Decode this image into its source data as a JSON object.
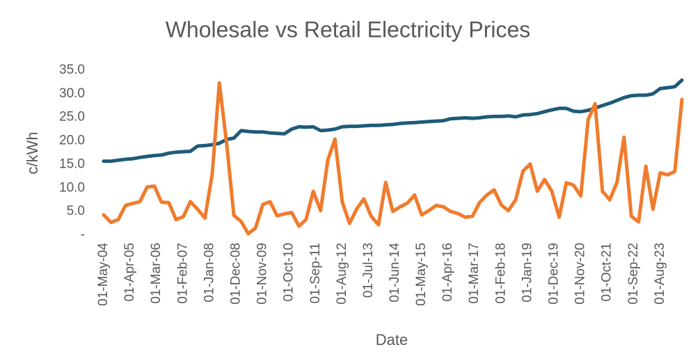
{
  "chart_data": {
    "type": "line",
    "title": "Wholesale vs Retail Electricity Prices",
    "xlabel": "Date",
    "ylabel": "c/kWh",
    "x": [
      "2004-05-01",
      "2004-08-01",
      "2004-11-01",
      "2005-02-01",
      "2005-05-01",
      "2005-08-01",
      "2005-11-01",
      "2006-02-01",
      "2006-05-01",
      "2006-08-01",
      "2006-11-01",
      "2007-02-01",
      "2007-05-01",
      "2007-08-01",
      "2007-11-01",
      "2008-02-01",
      "2008-05-01",
      "2008-08-01",
      "2008-11-01",
      "2009-02-01",
      "2009-05-01",
      "2009-08-01",
      "2009-11-01",
      "2010-02-01",
      "2010-05-01",
      "2010-08-01",
      "2010-11-01",
      "2011-02-01",
      "2011-05-01",
      "2011-08-01",
      "2011-11-01",
      "2012-02-01",
      "2012-05-01",
      "2012-08-01",
      "2012-11-01",
      "2013-02-01",
      "2013-05-01",
      "2013-08-01",
      "2013-11-01",
      "2014-02-01",
      "2014-05-01",
      "2014-08-01",
      "2014-11-01",
      "2015-02-01",
      "2015-05-01",
      "2015-08-01",
      "2015-11-01",
      "2016-02-01",
      "2016-05-01",
      "2016-08-01",
      "2016-11-01",
      "2017-02-01",
      "2017-05-01",
      "2017-08-01",
      "2017-11-01",
      "2018-02-01",
      "2018-05-01",
      "2018-08-01",
      "2018-11-01",
      "2019-02-01",
      "2019-05-01",
      "2019-08-01",
      "2019-11-01",
      "2020-02-01",
      "2020-05-01",
      "2020-08-01",
      "2020-11-01",
      "2021-02-01",
      "2021-05-01",
      "2021-08-01",
      "2021-11-01",
      "2022-02-01",
      "2022-05-01",
      "2022-08-01",
      "2022-11-01",
      "2023-02-01",
      "2023-05-01",
      "2023-08-01",
      "2023-11-01",
      "2024-02-01",
      "2024-05-01"
    ],
    "series": [
      {
        "color": "#1d5b79",
        "values": [
          15.7,
          15.7,
          15.9,
          16.1,
          16.2,
          16.5,
          16.7,
          16.9,
          17.0,
          17.4,
          17.6,
          17.7,
          17.8,
          18.9,
          19.0,
          19.2,
          19.5,
          20.3,
          20.6,
          22.2,
          22.0,
          21.9,
          21.9,
          21.7,
          21.6,
          21.5,
          22.5,
          23.0,
          22.9,
          23.0,
          22.2,
          22.3,
          22.5,
          23.0,
          23.1,
          23.1,
          23.2,
          23.3,
          23.3,
          23.4,
          23.5,
          23.7,
          23.8,
          23.9,
          24.0,
          24.1,
          24.2,
          24.3,
          24.7,
          24.8,
          24.9,
          24.8,
          24.9,
          25.1,
          25.2,
          25.2,
          25.3,
          25.1,
          25.5,
          25.6,
          25.8,
          26.2,
          26.6,
          26.9,
          26.9,
          26.3,
          26.2,
          26.5,
          27.0,
          27.5,
          28.0,
          28.6,
          29.2,
          29.6,
          29.7,
          29.7,
          30.0,
          31.1,
          31.3,
          31.5,
          32.9
        ]
      },
      {
        "color": "#f07b2c",
        "values": [
          4.3,
          2.7,
          3.3,
          6.3,
          6.7,
          7.1,
          10.2,
          10.4,
          7.0,
          6.9,
          3.3,
          3.9,
          7.1,
          5.5,
          3.6,
          13.0,
          32.3,
          19.5,
          4.2,
          2.9,
          0.3,
          1.5,
          6.5,
          7.1,
          4.1,
          4.5,
          4.8,
          1.9,
          3.3,
          9.3,
          5.2,
          16.0,
          20.4,
          7.0,
          2.5,
          5.6,
          7.7,
          4.0,
          2.2,
          11.2,
          5.0,
          6.0,
          6.8,
          8.5,
          4.3,
          5.2,
          6.3,
          6.0,
          5.0,
          4.6,
          3.8,
          4.0,
          6.9,
          8.5,
          9.6,
          6.4,
          5.2,
          7.5,
          13.6,
          15.1,
          9.3,
          11.8,
          9.3,
          3.8,
          11.1,
          10.6,
          8.3,
          24.5,
          27.9,
          9.3,
          7.5,
          11.2,
          20.8,
          4.0,
          2.8,
          14.6,
          5.5,
          13.2,
          12.8,
          13.5,
          28.8
        ]
      }
    ],
    "xlim": [
      "2004-05-01",
      "2024-05-01"
    ],
    "xticks": [
      {
        "value": "2004-05-01",
        "label": "01-May-04"
      },
      {
        "value": "2005-04-01",
        "label": "01-Apr-05"
      },
      {
        "value": "2006-03-01",
        "label": "01-Mar-06"
      },
      {
        "value": "2007-02-01",
        "label": "01-Feb-07"
      },
      {
        "value": "2008-01-01",
        "label": "01-Jan-08"
      },
      {
        "value": "2008-12-01",
        "label": "01-Dec-08"
      },
      {
        "value": "2009-11-01",
        "label": "01-Nov-09"
      },
      {
        "value": "2010-10-01",
        "label": "01-Oct-10"
      },
      {
        "value": "2011-09-01",
        "label": "01-Sep-11"
      },
      {
        "value": "2012-08-01",
        "label": "01-Aug-12"
      },
      {
        "value": "2013-07-01",
        "label": "01-Jul-13"
      },
      {
        "value": "2014-06-01",
        "label": "01-Jun-14"
      },
      {
        "value": "2015-05-01",
        "label": "01-May-15"
      },
      {
        "value": "2016-04-01",
        "label": "01-Apr-16"
      },
      {
        "value": "2017-03-01",
        "label": "01-Mar-17"
      },
      {
        "value": "2018-02-01",
        "label": "01-Feb-18"
      },
      {
        "value": "2019-01-01",
        "label": "01-Jan-19"
      },
      {
        "value": "2019-12-01",
        "label": "01-Dec-19"
      },
      {
        "value": "2020-11-01",
        "label": "01-Nov-20"
      },
      {
        "value": "2021-10-01",
        "label": "01-Oct-21"
      },
      {
        "value": "2022-09-01",
        "label": "01-Sep-22"
      },
      {
        "value": "2023-08-01",
        "label": "01-Aug-23"
      }
    ],
    "ylim": [
      0,
      35
    ],
    "yticks": [
      {
        "value": 0,
        "label": "-"
      },
      {
        "value": 5,
        "label": "5.0"
      },
      {
        "value": 10,
        "label": "10.0"
      },
      {
        "value": 15,
        "label": "15.0"
      },
      {
        "value": 20,
        "label": "20.0"
      },
      {
        "value": 25,
        "label": "25.0"
      },
      {
        "value": 30,
        "label": "30.0"
      },
      {
        "value": 35,
        "label": "35.0"
      }
    ],
    "grid": false
  }
}
